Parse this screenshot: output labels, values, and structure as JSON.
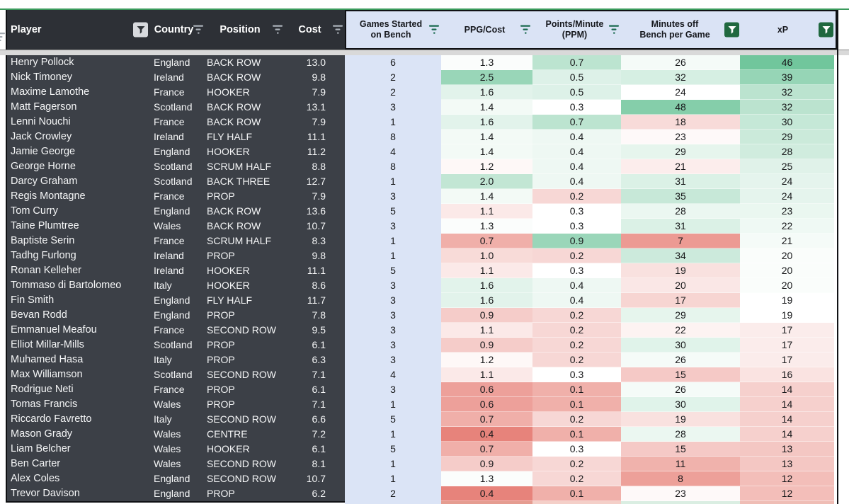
{
  "colors": {
    "header_dark_bg": "#2d3036",
    "row_dark_bg": "#3c4047",
    "light_header_bg": "#dae3f5",
    "games_column_bg": "#dbe4f6",
    "scale_low": "#e67c73",
    "scale_mid": "#ffffff",
    "scale_high": "#57bb8a",
    "active_filter_green": "#20683f",
    "selection_border_green": "#3a9a5c",
    "divider_gray": "#d9d9d9"
  },
  "table": {
    "columns": [
      {
        "id": "player",
        "label": "Player",
        "filter": "active-light"
      },
      {
        "id": "country",
        "label": "Country",
        "filter": "lines"
      },
      {
        "id": "position",
        "label": "Position",
        "filter": "lines"
      },
      {
        "id": "cost",
        "label": "Cost",
        "filter": "lines"
      },
      {
        "id": "games",
        "label": "Games Started on Bench",
        "filter": "lines"
      },
      {
        "id": "ppg",
        "label": "PPG/Cost",
        "filter": "lines"
      },
      {
        "id": "ppm",
        "label": "Points/Minute (PPM)",
        "filter": "lines"
      },
      {
        "id": "minutes",
        "label": "Minutes off Bench per Game",
        "filter": "active-green"
      },
      {
        "id": "xp",
        "label": "xP",
        "filter": "active-green"
      }
    ],
    "color_scales": {
      "ppg": {
        "min": 0.35,
        "mid": 1.25,
        "max": 3.3
      },
      "ppm": {
        "min": -0.03,
        "mid": 0.3,
        "max": 1.3
      },
      "minutes": {
        "min": 2,
        "mid": 24,
        "max": 57
      },
      "xp": {
        "min": 5,
        "mid": 19,
        "max": 51
      }
    },
    "rows": [
      {
        "player": "Henry Pollock",
        "country": "England",
        "position": "BACK ROW",
        "cost": "13.0",
        "games": "6",
        "ppg": "1.3",
        "ppm": "0.7",
        "minutes": "26",
        "xp": "46"
      },
      {
        "player": "Nick Timoney",
        "country": "Ireland",
        "position": "BACK ROW",
        "cost": "9.8",
        "games": "2",
        "ppg": "2.5",
        "ppm": "0.5",
        "minutes": "32",
        "xp": "39"
      },
      {
        "player": "Maxime Lamothe",
        "country": "France",
        "position": "HOOKER",
        "cost": "7.9",
        "games": "2",
        "ppg": "1.6",
        "ppm": "0.5",
        "minutes": "24",
        "xp": "32"
      },
      {
        "player": "Matt Fagerson",
        "country": "Scotland",
        "position": "BACK ROW",
        "cost": "13.1",
        "games": "3",
        "ppg": "1.4",
        "ppm": "0.3",
        "minutes": "48",
        "xp": "32"
      },
      {
        "player": "Lenni Nouchi",
        "country": "France",
        "position": "BACK ROW",
        "cost": "7.9",
        "games": "1",
        "ppg": "1.6",
        "ppm": "0.7",
        "minutes": "18",
        "xp": "30"
      },
      {
        "player": "Jack Crowley",
        "country": "Ireland",
        "position": "FLY HALF",
        "cost": "11.1",
        "games": "8",
        "ppg": "1.4",
        "ppm": "0.4",
        "minutes": "23",
        "xp": "29"
      },
      {
        "player": "Jamie George",
        "country": "England",
        "position": "HOOKER",
        "cost": "11.2",
        "games": "4",
        "ppg": "1.4",
        "ppm": "0.4",
        "minutes": "29",
        "xp": "28"
      },
      {
        "player": "George Horne",
        "country": "Scotland",
        "position": "SCRUM HALF",
        "cost": "8.8",
        "games": "8",
        "ppg": "1.2",
        "ppm": "0.4",
        "minutes": "21",
        "xp": "25"
      },
      {
        "player": "Darcy Graham",
        "country": "Scotland",
        "position": "BACK THREE",
        "cost": "12.7",
        "games": "1",
        "ppg": "2.0",
        "ppm": "0.4",
        "minutes": "31",
        "xp": "24"
      },
      {
        "player": "Regis Montagne",
        "country": "France",
        "position": "PROP",
        "cost": "7.9",
        "games": "3",
        "ppg": "1.4",
        "ppm": "0.2",
        "minutes": "35",
        "xp": "24"
      },
      {
        "player": "Tom Curry",
        "country": "England",
        "position": "BACK ROW",
        "cost": "13.6",
        "games": "5",
        "ppg": "1.1",
        "ppm": "0.3",
        "minutes": "28",
        "xp": "23"
      },
      {
        "player": "Taine Plumtree",
        "country": "Wales",
        "position": "BACK ROW",
        "cost": "10.7",
        "games": "3",
        "ppg": "1.3",
        "ppm": "0.3",
        "minutes": "31",
        "xp": "22"
      },
      {
        "player": "Baptiste Serin",
        "country": "France",
        "position": "SCRUM HALF",
        "cost": "8.3",
        "games": "1",
        "ppg": "0.7",
        "ppm": "0.9",
        "minutes": "7",
        "xp": "21"
      },
      {
        "player": "Tadhg Furlong",
        "country": "Ireland",
        "position": "PROP",
        "cost": "9.8",
        "games": "1",
        "ppg": "1.0",
        "ppm": "0.2",
        "minutes": "34",
        "xp": "20"
      },
      {
        "player": "Ronan Kelleher",
        "country": "Ireland",
        "position": "HOOKER",
        "cost": "11.1",
        "games": "5",
        "ppg": "1.1",
        "ppm": "0.3",
        "minutes": "19",
        "xp": "20"
      },
      {
        "player": "Tommaso di Bartolomeo",
        "country": "Italy",
        "position": "HOOKER",
        "cost": "8.6",
        "games": "3",
        "ppg": "1.6",
        "ppm": "0.4",
        "minutes": "20",
        "xp": "20"
      },
      {
        "player": "Fin Smith",
        "country": "England",
        "position": "FLY HALF",
        "cost": "11.7",
        "games": "3",
        "ppg": "1.6",
        "ppm": "0.4",
        "minutes": "17",
        "xp": "19"
      },
      {
        "player": "Bevan Rodd",
        "country": "England",
        "position": "PROP",
        "cost": "7.8",
        "games": "3",
        "ppg": "0.9",
        "ppm": "0.2",
        "minutes": "29",
        "xp": "19"
      },
      {
        "player": "Emmanuel Meafou",
        "country": "France",
        "position": "SECOND ROW",
        "cost": "9.5",
        "games": "3",
        "ppg": "1.1",
        "ppm": "0.2",
        "minutes": "22",
        "xp": "17"
      },
      {
        "player": "Elliot Millar-Mills",
        "country": "Scotland",
        "position": "PROP",
        "cost": "6.1",
        "games": "3",
        "ppg": "0.9",
        "ppm": "0.2",
        "minutes": "30",
        "xp": "17"
      },
      {
        "player": "Muhamed Hasa",
        "country": "Italy",
        "position": "PROP",
        "cost": "6.3",
        "games": "3",
        "ppg": "1.2",
        "ppm": "0.2",
        "minutes": "26",
        "xp": "17"
      },
      {
        "player": "Max Williamson",
        "country": "Scotland",
        "position": "SECOND ROW",
        "cost": "7.1",
        "games": "4",
        "ppg": "1.1",
        "ppm": "0.3",
        "minutes": "15",
        "xp": "16"
      },
      {
        "player": "Rodrigue Neti",
        "country": "France",
        "position": "PROP",
        "cost": "6.1",
        "games": "3",
        "ppg": "0.6",
        "ppm": "0.1",
        "minutes": "26",
        "xp": "14"
      },
      {
        "player": "Tomas Francis",
        "country": "Wales",
        "position": "PROP",
        "cost": "7.1",
        "games": "1",
        "ppg": "0.6",
        "ppm": "0.1",
        "minutes": "30",
        "xp": "14"
      },
      {
        "player": "Riccardo Favretto",
        "country": "Italy",
        "position": "SECOND ROW",
        "cost": "6.6",
        "games": "5",
        "ppg": "0.7",
        "ppm": "0.2",
        "minutes": "19",
        "xp": "14"
      },
      {
        "player": "Mason Grady",
        "country": "Wales",
        "position": "CENTRE",
        "cost": "7.2",
        "games": "1",
        "ppg": "0.4",
        "ppm": "0.1",
        "minutes": "28",
        "xp": "14"
      },
      {
        "player": "Liam Belcher",
        "country": "Wales",
        "position": "HOOKER",
        "cost": "6.1",
        "games": "5",
        "ppg": "0.7",
        "ppm": "0.3",
        "minutes": "15",
        "xp": "13"
      },
      {
        "player": "Ben Carter",
        "country": "Wales",
        "position": "SECOND ROW",
        "cost": "8.1",
        "games": "1",
        "ppg": "0.9",
        "ppm": "0.2",
        "minutes": "11",
        "xp": "13"
      },
      {
        "player": "Alex Coles",
        "country": "England",
        "position": "SECOND ROW",
        "cost": "10.7",
        "games": "1",
        "ppg": "1.3",
        "ppm": "0.2",
        "minutes": "8",
        "xp": "12"
      },
      {
        "player": "Trevor Davison",
        "country": "England",
        "position": "PROP",
        "cost": "6.2",
        "games": "2",
        "ppg": "0.4",
        "ppm": "0.1",
        "minutes": "23",
        "xp": "12"
      }
    ],
    "partial_next_row_colors": {
      "games": "#dbe4f6",
      "ppg": "#e59c90",
      "ppm": "#f4cfc8",
      "minutes": "#daeee2",
      "xp": "#efbdb5"
    }
  }
}
